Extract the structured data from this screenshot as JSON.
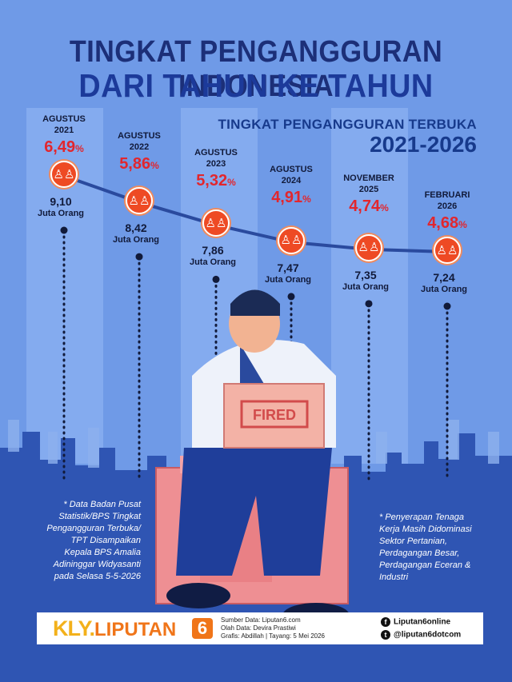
{
  "title": {
    "line1": "TINGKAT PENGANGGURAN INDONESIA",
    "line2": "DARI TAHUN KE TAHUN"
  },
  "subtitle": {
    "line1": "TINGKAT PENGANGGURAN TERBUKA",
    "line2": "2021-2026"
  },
  "unit_label": "Juta Orang",
  "points": [
    {
      "period_line1": "AGUSTUS",
      "period_line2": "2021",
      "rate": "6,49",
      "rate_pct": 6.49,
      "count": "9,10",
      "count_value": 9.1
    },
    {
      "period_line1": "AGUSTUS",
      "period_line2": "2022",
      "rate": "5,86",
      "rate_pct": 5.86,
      "count": "8,42",
      "count_value": 8.42
    },
    {
      "period_line1": "AGUSTUS",
      "period_line2": "2023",
      "rate": "5,32",
      "rate_pct": 5.32,
      "count": "7,86",
      "count_value": 7.86
    },
    {
      "period_line1": "AGUSTUS",
      "period_line2": "2024",
      "rate": "4,91",
      "rate_pct": 4.91,
      "count": "7,47",
      "count_value": 7.47
    },
    {
      "period_line1": "NOVEMBER",
      "period_line2": "2025",
      "rate": "4,74",
      "rate_pct": 4.74,
      "count": "7,35",
      "count_value": 7.35
    },
    {
      "period_line1": "FEBRUARI",
      "period_line2": "2026",
      "rate": "4,68",
      "rate_pct": 4.68,
      "count": "7,24",
      "count_value": 7.24
    }
  ],
  "illustration": {
    "box_label": "FIRED"
  },
  "notes": {
    "left": "* Data Badan Pusat Statistik/BPS Tingkat Pengangguran Terbuka/ TPT Disampaikan Kepala BPS Amalia Adininggar Widyasanti pada Selasa 5-5-2026",
    "right": "* Penyerapan Tenaga Kerja Masih Didominasi Sektor Pertanian, Perdagangan Besar, Perdagangan Eceran & Industri"
  },
  "footer": {
    "brand_kly": "KLY.",
    "brand_name": "LIPUTAN",
    "brand_six": "6",
    "source": "Sumber Data: Liputan6.com",
    "editor": "Olah Data: Devira Prastiwi",
    "graphic": "Grafis: Abdillah | Tayang: 5 Mei 2026",
    "facebook": "Liputan6online",
    "twitter": "@liputan6dotcom"
  },
  "colors": {
    "background": "#6f9ae7",
    "title": "#1c2f78",
    "rate": "#e2262d",
    "marker": "#ee4a24",
    "line": "#2a4a9e",
    "skyline": "#2f55b3"
  },
  "icons": {
    "marker": "people-group-icon",
    "facebook": "facebook-icon",
    "twitter": "twitter-icon"
  }
}
